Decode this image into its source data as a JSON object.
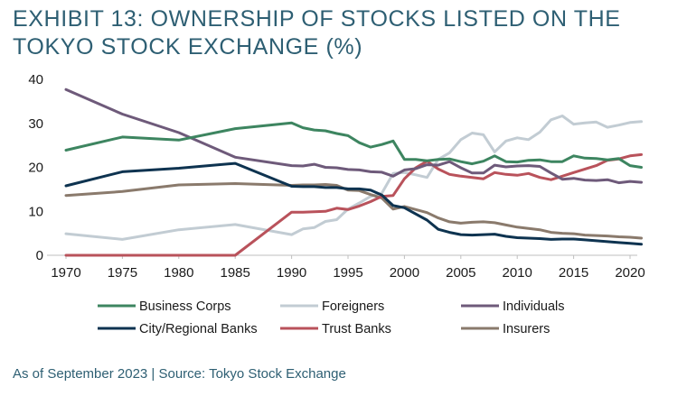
{
  "title": "EXHIBIT 13: OWNERSHIP OF STOCKS LISTED ON THE TOKYO STOCK EXCHANGE (%)",
  "source": "As of September 2023 | Source: Tokyo Stock Exchange",
  "chart_data": {
    "type": "line",
    "title": "EXHIBIT 13: OWNERSHIP OF STOCKS LISTED ON THE TOKYO STOCK EXCHANGE (%)",
    "xlabel": "",
    "ylabel": "",
    "xlim": [
      1970,
      2022
    ],
    "ylim": [
      0,
      40
    ],
    "x_ticks": [
      1970,
      1975,
      1980,
      1985,
      1990,
      1995,
      2000,
      2005,
      2010,
      2015,
      2020
    ],
    "y_ticks": [
      0,
      10,
      20,
      30,
      40
    ],
    "grid": false,
    "legend_position": "bottom",
    "series": [
      {
        "name": "Business Corps",
        "color": "#3d8560",
        "points": [
          [
            1970,
            23.9
          ],
          [
            1975,
            26.9
          ],
          [
            1980,
            26.2
          ],
          [
            1985,
            28.8
          ],
          [
            1990,
            30.1
          ],
          [
            1991,
            29.0
          ],
          [
            1992,
            28.5
          ],
          [
            1993,
            28.3
          ],
          [
            1994,
            27.7
          ],
          [
            1995,
            27.2
          ],
          [
            1996,
            25.6
          ],
          [
            1997,
            24.6
          ],
          [
            1998,
            25.2
          ],
          [
            1999,
            26.0
          ],
          [
            2000,
            21.8
          ],
          [
            2001,
            21.8
          ],
          [
            2002,
            21.5
          ],
          [
            2003,
            21.8
          ],
          [
            2004,
            21.9
          ],
          [
            2005,
            21.3
          ],
          [
            2006,
            20.8
          ],
          [
            2007,
            21.4
          ],
          [
            2008,
            22.6
          ],
          [
            2009,
            21.3
          ],
          [
            2010,
            21.2
          ],
          [
            2011,
            21.6
          ],
          [
            2012,
            21.7
          ],
          [
            2013,
            21.3
          ],
          [
            2014,
            21.3
          ],
          [
            2015,
            22.6
          ],
          [
            2016,
            22.1
          ],
          [
            2017,
            22.0
          ],
          [
            2018,
            21.7
          ],
          [
            2019,
            22.0
          ],
          [
            2020,
            20.4
          ],
          [
            2021,
            20.0
          ]
        ]
      },
      {
        "name": "Foreigners",
        "color": "#c2ccd3",
        "points": [
          [
            1970,
            4.9
          ],
          [
            1975,
            3.6
          ],
          [
            1980,
            5.8
          ],
          [
            1985,
            7.0
          ],
          [
            1990,
            4.7
          ],
          [
            1991,
            6.0
          ],
          [
            1992,
            6.3
          ],
          [
            1993,
            7.7
          ],
          [
            1994,
            8.1
          ],
          [
            1995,
            10.5
          ],
          [
            1996,
            11.9
          ],
          [
            1997,
            13.4
          ],
          [
            1998,
            14.1
          ],
          [
            1999,
            18.6
          ],
          [
            2000,
            18.8
          ],
          [
            2001,
            18.3
          ],
          [
            2002,
            17.7
          ],
          [
            2003,
            21.8
          ],
          [
            2004,
            23.3
          ],
          [
            2005,
            26.3
          ],
          [
            2006,
            27.8
          ],
          [
            2007,
            27.4
          ],
          [
            2008,
            23.5
          ],
          [
            2009,
            26.0
          ],
          [
            2010,
            26.7
          ],
          [
            2011,
            26.3
          ],
          [
            2012,
            28.0
          ],
          [
            2013,
            30.8
          ],
          [
            2014,
            31.7
          ],
          [
            2015,
            29.8
          ],
          [
            2016,
            30.1
          ],
          [
            2017,
            30.3
          ],
          [
            2018,
            29.1
          ],
          [
            2019,
            29.6
          ],
          [
            2020,
            30.2
          ],
          [
            2021,
            30.4
          ]
        ]
      },
      {
        "name": "Individuals",
        "color": "#6e5a7a",
        "points": [
          [
            1970,
            37.7
          ],
          [
            1975,
            32.1
          ],
          [
            1980,
            27.9
          ],
          [
            1985,
            22.3
          ],
          [
            1990,
            20.4
          ],
          [
            1991,
            20.3
          ],
          [
            1992,
            20.7
          ],
          [
            1993,
            20.0
          ],
          [
            1994,
            19.9
          ],
          [
            1995,
            19.5
          ],
          [
            1996,
            19.4
          ],
          [
            1997,
            19.0
          ],
          [
            1998,
            18.9
          ],
          [
            1999,
            18.0
          ],
          [
            2000,
            19.4
          ],
          [
            2001,
            19.7
          ],
          [
            2002,
            20.6
          ],
          [
            2003,
            20.5
          ],
          [
            2004,
            21.3
          ],
          [
            2005,
            19.9
          ],
          [
            2006,
            18.7
          ],
          [
            2007,
            18.7
          ],
          [
            2008,
            20.5
          ],
          [
            2009,
            20.1
          ],
          [
            2010,
            20.3
          ],
          [
            2011,
            20.4
          ],
          [
            2012,
            20.2
          ],
          [
            2013,
            18.7
          ],
          [
            2014,
            17.3
          ],
          [
            2015,
            17.5
          ],
          [
            2016,
            17.1
          ],
          [
            2017,
            17.0
          ],
          [
            2018,
            17.2
          ],
          [
            2019,
            16.5
          ],
          [
            2020,
            16.8
          ],
          [
            2021,
            16.6
          ]
        ]
      },
      {
        "name": "City/Regional Banks",
        "color": "#0e3350",
        "points": [
          [
            1970,
            15.8
          ],
          [
            1975,
            19.0
          ],
          [
            1980,
            19.8
          ],
          [
            1985,
            20.9
          ],
          [
            1990,
            15.7
          ],
          [
            1991,
            15.6
          ],
          [
            1992,
            15.6
          ],
          [
            1993,
            15.4
          ],
          [
            1994,
            15.4
          ],
          [
            1995,
            15.1
          ],
          [
            1996,
            15.1
          ],
          [
            1997,
            14.8
          ],
          [
            1998,
            13.7
          ],
          [
            1999,
            11.3
          ],
          [
            2000,
            10.8
          ],
          [
            2001,
            9.4
          ],
          [
            2002,
            8.0
          ],
          [
            2003,
            5.9
          ],
          [
            2004,
            5.2
          ],
          [
            2005,
            4.7
          ],
          [
            2006,
            4.6
          ],
          [
            2007,
            4.7
          ],
          [
            2008,
            4.8
          ],
          [
            2009,
            4.3
          ],
          [
            2010,
            4.0
          ],
          [
            2011,
            3.9
          ],
          [
            2012,
            3.8
          ],
          [
            2013,
            3.6
          ],
          [
            2014,
            3.7
          ],
          [
            2015,
            3.7
          ],
          [
            2016,
            3.5
          ],
          [
            2017,
            3.3
          ],
          [
            2018,
            3.1
          ],
          [
            2019,
            2.9
          ],
          [
            2020,
            2.7
          ],
          [
            2021,
            2.5
          ]
        ]
      },
      {
        "name": "Trust Banks",
        "color": "#b9525b",
        "points": [
          [
            1970,
            0
          ],
          [
            1975,
            0
          ],
          [
            1980,
            0
          ],
          [
            1985,
            0
          ],
          [
            1990,
            9.8
          ],
          [
            1991,
            9.8
          ],
          [
            1992,
            9.9
          ],
          [
            1993,
            10.0
          ],
          [
            1994,
            10.7
          ],
          [
            1995,
            10.4
          ],
          [
            1996,
            11.2
          ],
          [
            1997,
            12.2
          ],
          [
            1998,
            13.4
          ],
          [
            1999,
            13.6
          ],
          [
            2000,
            17.4
          ],
          [
            2001,
            19.9
          ],
          [
            2002,
            21.4
          ],
          [
            2003,
            19.6
          ],
          [
            2004,
            18.4
          ],
          [
            2005,
            18.0
          ],
          [
            2006,
            17.7
          ],
          [
            2007,
            17.4
          ],
          [
            2008,
            18.8
          ],
          [
            2009,
            18.4
          ],
          [
            2010,
            18.2
          ],
          [
            2011,
            18.6
          ],
          [
            2012,
            17.7
          ],
          [
            2013,
            17.2
          ],
          [
            2014,
            18.0
          ],
          [
            2015,
            18.8
          ],
          [
            2016,
            19.6
          ],
          [
            2017,
            20.4
          ],
          [
            2018,
            21.6
          ],
          [
            2019,
            21.9
          ],
          [
            2020,
            22.6
          ],
          [
            2021,
            22.9
          ]
        ]
      },
      {
        "name": "Insurers",
        "color": "#8a7a6c",
        "points": [
          [
            1970,
            13.6
          ],
          [
            1975,
            14.5
          ],
          [
            1980,
            16.0
          ],
          [
            1985,
            16.3
          ],
          [
            1990,
            15.9
          ],
          [
            1991,
            16.0
          ],
          [
            1992,
            16.0
          ],
          [
            1993,
            16.1
          ],
          [
            1994,
            15.9
          ],
          [
            1995,
            14.8
          ],
          [
            1996,
            14.7
          ],
          [
            1997,
            13.8
          ],
          [
            1998,
            13.0
          ],
          [
            1999,
            10.5
          ],
          [
            2000,
            11.1
          ],
          [
            2001,
            10.4
          ],
          [
            2002,
            9.7
          ],
          [
            2003,
            8.5
          ],
          [
            2004,
            7.6
          ],
          [
            2005,
            7.3
          ],
          [
            2006,
            7.5
          ],
          [
            2007,
            7.6
          ],
          [
            2008,
            7.4
          ],
          [
            2009,
            6.9
          ],
          [
            2010,
            6.4
          ],
          [
            2011,
            6.1
          ],
          [
            2012,
            5.8
          ],
          [
            2013,
            5.2
          ],
          [
            2014,
            5.0
          ],
          [
            2015,
            4.9
          ],
          [
            2016,
            4.6
          ],
          [
            2017,
            4.5
          ],
          [
            2018,
            4.4
          ],
          [
            2019,
            4.2
          ],
          [
            2020,
            4.1
          ],
          [
            2021,
            3.9
          ]
        ]
      }
    ]
  }
}
